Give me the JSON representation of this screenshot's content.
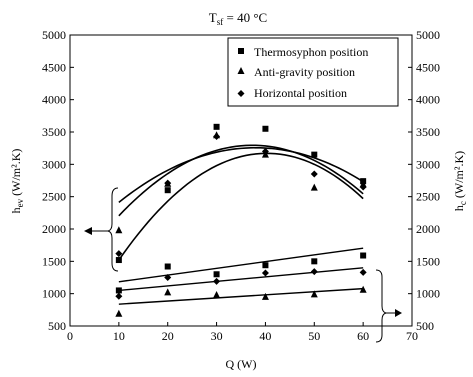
{
  "chart_data": {
    "type": "scatter",
    "title": "T",
    "title_subscript": "sf",
    "title_suffix": " = 40 °C",
    "xlabel": "Q (W)",
    "ylabel_left": {
      "base": "h",
      "sub": "ev",
      "unit": " (W/m².K)"
    },
    "ylabel_right": {
      "base": "h",
      "sub": "c",
      "unit": " (W/m².K)"
    },
    "xlim": [
      0,
      70
    ],
    "ylim": [
      500,
      5000
    ],
    "x_ticks": [
      0,
      10,
      20,
      30,
      40,
      50,
      60,
      70
    ],
    "y_ticks": [
      500,
      1000,
      1500,
      2000,
      2500,
      3000,
      3500,
      4000,
      4500,
      5000
    ],
    "grid": false,
    "legend_position": "top-right",
    "series": [
      {
        "name": "Thermosyphon position",
        "marker": "square",
        "evaporator": {
          "x": [
            10,
            20,
            30,
            40,
            50,
            60
          ],
          "y": [
            1520,
            2600,
            3580,
            3550,
            3150,
            2740
          ]
        },
        "evaporator_fit": [
          -1.8,
          145,
          250
        ],
        "condenser": {
          "x": [
            10,
            20,
            30,
            40,
            50,
            60
          ],
          "y": [
            1050,
            1420,
            1300,
            1440,
            1500,
            1590
          ]
        },
        "condenser_fit": [
          10.4,
          1080
        ]
      },
      {
        "name": "Anti-gravity position",
        "marker": "triangle",
        "evaporator": {
          "x": [
            10,
            20,
            30,
            40,
            50,
            60
          ],
          "y": [
            1980,
            2700,
            3450,
            3150,
            2640,
            2690
          ]
        },
        "evaporator_fit": [
          -1.08,
          82,
          1700
        ],
        "condenser": {
          "x": [
            10,
            20,
            30,
            40,
            50,
            60
          ],
          "y": [
            690,
            1020,
            980,
            950,
            990,
            1060
          ]
        },
        "condenser_fit": [
          4.8,
          790
        ]
      },
      {
        "name": "Horizontal position",
        "marker": "diamond",
        "evaporator": {
          "x": [
            10,
            20,
            30,
            40,
            50,
            60
          ],
          "y": [
            1620,
            2710,
            3430,
            3200,
            2850,
            2650
          ]
        },
        "evaporator_fit": [
          -1.46,
          109,
          1260
        ],
        "condenser": {
          "x": [
            10,
            20,
            30,
            40,
            50,
            60
          ],
          "y": [
            960,
            1250,
            1190,
            1320,
            1340,
            1330
          ]
        },
        "condenser_fit": [
          7,
          980
        ]
      }
    ]
  }
}
